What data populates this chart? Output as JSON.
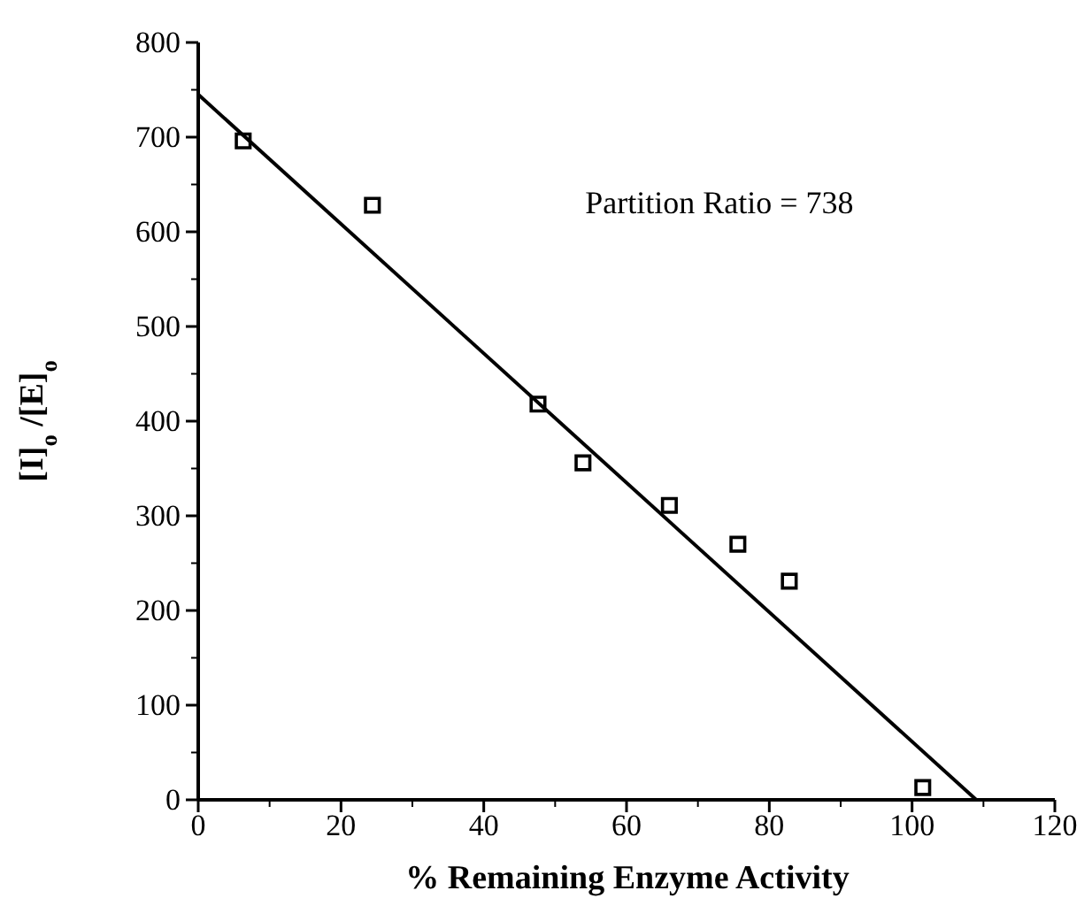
{
  "chart_data": {
    "type": "scatter",
    "xlabel": "% Remaining Enzyme Activity",
    "ylabel": "[I]$_{o}$ /[E]$_{o}$",
    "xlim": [
      0,
      120
    ],
    "xticks": [
      0,
      20,
      40,
      60,
      80,
      100,
      120
    ],
    "ylim": [
      0,
      800
    ],
    "yticks": [
      0,
      100,
      200,
      300,
      400,
      500,
      600,
      700,
      800
    ],
    "grid": false,
    "annotations": [
      "Partition Ratio = 738"
    ],
    "series": [
      {
        "color": "#000000",
        "marker": "square",
        "x": [
          6.3,
          24.4,
          47.6,
          53.9,
          66,
          75.6,
          82.8,
          101.5
        ],
        "values": [
          696,
          628,
          418,
          356,
          311,
          270,
          231,
          13
        ]
      },
      {
        "type": "line",
        "color": "#000000",
        "x": [
          0,
          109
        ],
        "values": [
          745,
          0
        ]
      }
    ]
  }
}
